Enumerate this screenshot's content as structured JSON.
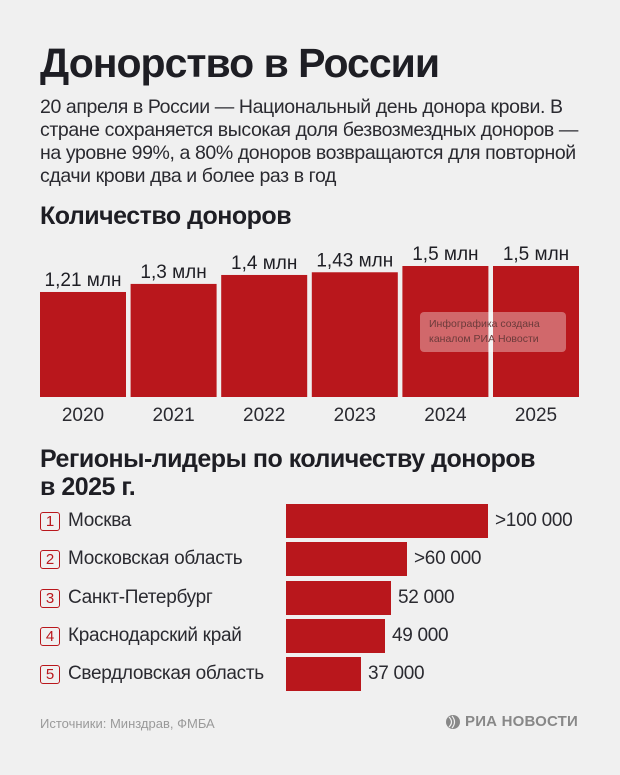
{
  "header": {
    "title": "Донорство в России",
    "lead": "20 апреля в России — Национальный день донора крови. В стране сохраняется высокая доля безвозмездных доноров — на уровне 99%, а 80% доноров возвращаются для повторной сдачи крови два и более раз в год"
  },
  "section1": {
    "title": "Количество доноров"
  },
  "watermark": {
    "line1": "Инфографика создана",
    "line2": "каналом РИА Новости"
  },
  "section2": {
    "title_line1": "Регионы-лидеры по количеству доноров",
    "title_line2": "в 2025 г."
  },
  "footer": {
    "source": "Источники: Минздрав, ФМБА",
    "logo": "РИА НОВОСТИ"
  },
  "colors": {
    "bar": "#b9171c",
    "text": "#1e1e24",
    "background": "#f0f0f0"
  },
  "chart_data": [
    {
      "type": "bar",
      "title": "Количество доноров",
      "xlabel": "",
      "ylabel": "",
      "unit": "млн",
      "categories": [
        "2020",
        "2021",
        "2022",
        "2023",
        "2024",
        "2025"
      ],
      "values": [
        1.21,
        1.3,
        1.4,
        1.43,
        1.5,
        1.5
      ],
      "labels": [
        "1,21 млн",
        "1,3 млн",
        "1,4 млн",
        "1,43 млн",
        "1,5 млн",
        "1,5 млн"
      ],
      "grid": false
    },
    {
      "type": "bar",
      "orientation": "horizontal",
      "title": "Регионы-лидеры по количеству доноров в 2025 г.",
      "categories": [
        "Москва",
        "Московская область",
        "Санкт-Петербург",
        "Краснодарский край",
        "Свердловская область"
      ],
      "ranks": [
        "1",
        "2",
        "3",
        "4",
        "5"
      ],
      "values": [
        100000,
        60000,
        52000,
        49000,
        37000
      ],
      "labels": [
        ">100 000",
        ">60 000",
        "52 000",
        "49 000",
        "37 000"
      ],
      "grid": false
    }
  ]
}
